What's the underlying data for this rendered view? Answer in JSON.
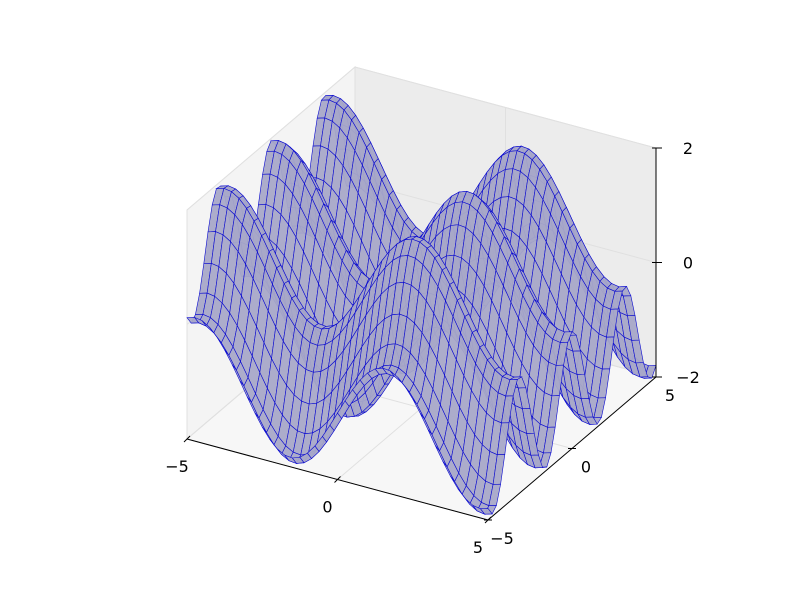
{
  "chart_data": {
    "type": "surface",
    "title": "",
    "xlabel": "",
    "ylabel": "",
    "zlabel": "",
    "function": "z = sin(x) + cos(2*y)",
    "grid": true,
    "xlim": [
      -5,
      5
    ],
    "ylim": [
      -5,
      5
    ],
    "zlim": [
      -2,
      2
    ],
    "x_ticks": [
      -5,
      0,
      5
    ],
    "y_ticks": [
      -5,
      0,
      5
    ],
    "z_ticks": [
      -2,
      0,
      2
    ],
    "x_tick_labels": [
      "−5",
      "0",
      "5"
    ],
    "y_tick_labels": [
      "−5",
      "0",
      "5"
    ],
    "z_tick_labels": [
      "−2",
      "0",
      "2"
    ],
    "samples_x": 41,
    "samples_y": 41,
    "colors": {
      "face": "#a8a8c8",
      "edge": "#0a0ad0",
      "pane_back": "#ececec",
      "pane_side": "#f4f4f4",
      "pane_floor": "#f7f7f7",
      "grid": "#e0e0e0",
      "axis": "#000000"
    }
  }
}
